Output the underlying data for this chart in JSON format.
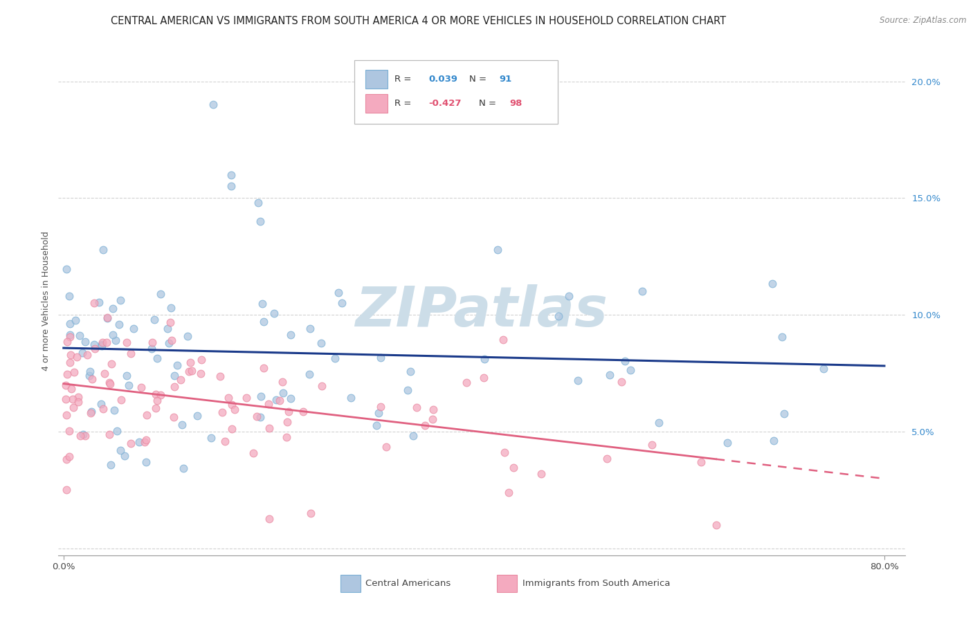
{
  "title": "CENTRAL AMERICAN VS IMMIGRANTS FROM SOUTH AMERICA 4 OR MORE VEHICLES IN HOUSEHOLD CORRELATION CHART",
  "source": "Source: ZipAtlas.com",
  "ylabel": "4 or more Vehicles in Household",
  "xlim_min": -0.5,
  "xlim_max": 82,
  "ylim_min": -0.3,
  "ylim_max": 21.5,
  "xtick_positions": [
    0,
    80
  ],
  "xticklabels": [
    "0.0%",
    "80.0%"
  ],
  "ytick_positions": [
    0,
    5,
    10,
    15,
    20
  ],
  "yticklabels": [
    "",
    "5.0%",
    "10.0%",
    "15.0%",
    "20.0%"
  ],
  "legend_label1": "Central Americans",
  "legend_label2": "Immigrants from South America",
  "R1": "0.039",
  "N1": "91",
  "R2": "-0.427",
  "N2": "98",
  "color1": "#aec6e0",
  "color1_edge": "#7aafd4",
  "color2": "#f4aabf",
  "color2_edge": "#e888a0",
  "line_color1": "#1a3a8a",
  "line_color2": "#e06080",
  "watermark": "ZIPatlas",
  "watermark_color": "#ccdde8",
  "title_fontsize": 10.5,
  "source_fontsize": 8.5,
  "axis_label_fontsize": 9,
  "tick_fontsize": 9.5,
  "legend_fontsize": 9.5,
  "scatter_size": 60,
  "scatter_alpha": 0.75,
  "grid_color": "#cccccc",
  "background": "#ffffff",
  "blue_intercept": 8.0,
  "blue_slope": 0.012,
  "blue_noise": 2.3,
  "pink_intercept": 7.5,
  "pink_slope": -0.065,
  "pink_noise": 1.6,
  "blue_x_mean": 18,
  "blue_x_std": 18,
  "pink_x_mean": 22,
  "pink_x_std": 20
}
